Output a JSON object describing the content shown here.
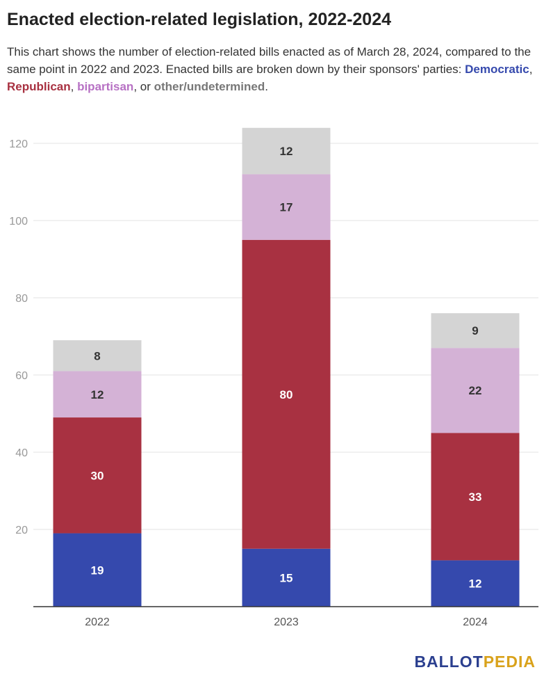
{
  "header": {
    "title": "Enacted election-related legislation, 2022-2024",
    "subtitle_intro": "This chart shows the number of election-related bills enacted as of March 28, 2024, compared to the same point in 2022 and 2023. Enacted bills are broken down by their sponsors' parties: ",
    "legend_democratic": "Democratic",
    "sep1": ", ",
    "legend_republican": "Republican",
    "sep2": ", ",
    "legend_bipartisan": "bipartisan",
    "sep3": ", or ",
    "legend_other": "other/undetermined",
    "end": "."
  },
  "brand": {
    "part1": "BALLOT",
    "part2": "PEDIA"
  },
  "chart_data": {
    "type": "bar",
    "stacked": true,
    "title": "Enacted election-related legislation, 2022-2024",
    "xlabel": "",
    "ylabel": "",
    "categories": [
      "2022",
      "2023",
      "2024"
    ],
    "ylim": [
      0,
      124
    ],
    "yticks": [
      20,
      40,
      60,
      80,
      100,
      120
    ],
    "grid": true,
    "series": [
      {
        "name": "Democratic",
        "color": "#3549ad",
        "label_color": "#ffffff",
        "values": [
          19,
          15,
          12
        ]
      },
      {
        "name": "Republican",
        "color": "#a83141",
        "label_color": "#ffffff",
        "values": [
          30,
          80,
          33
        ]
      },
      {
        "name": "bipartisan",
        "color": "#d4b2d6",
        "label_color": "#333333",
        "values": [
          12,
          17,
          22
        ]
      },
      {
        "name": "other/undetermined",
        "color": "#d4d4d4",
        "label_color": "#333333",
        "values": [
          8,
          12,
          9
        ]
      }
    ]
  }
}
